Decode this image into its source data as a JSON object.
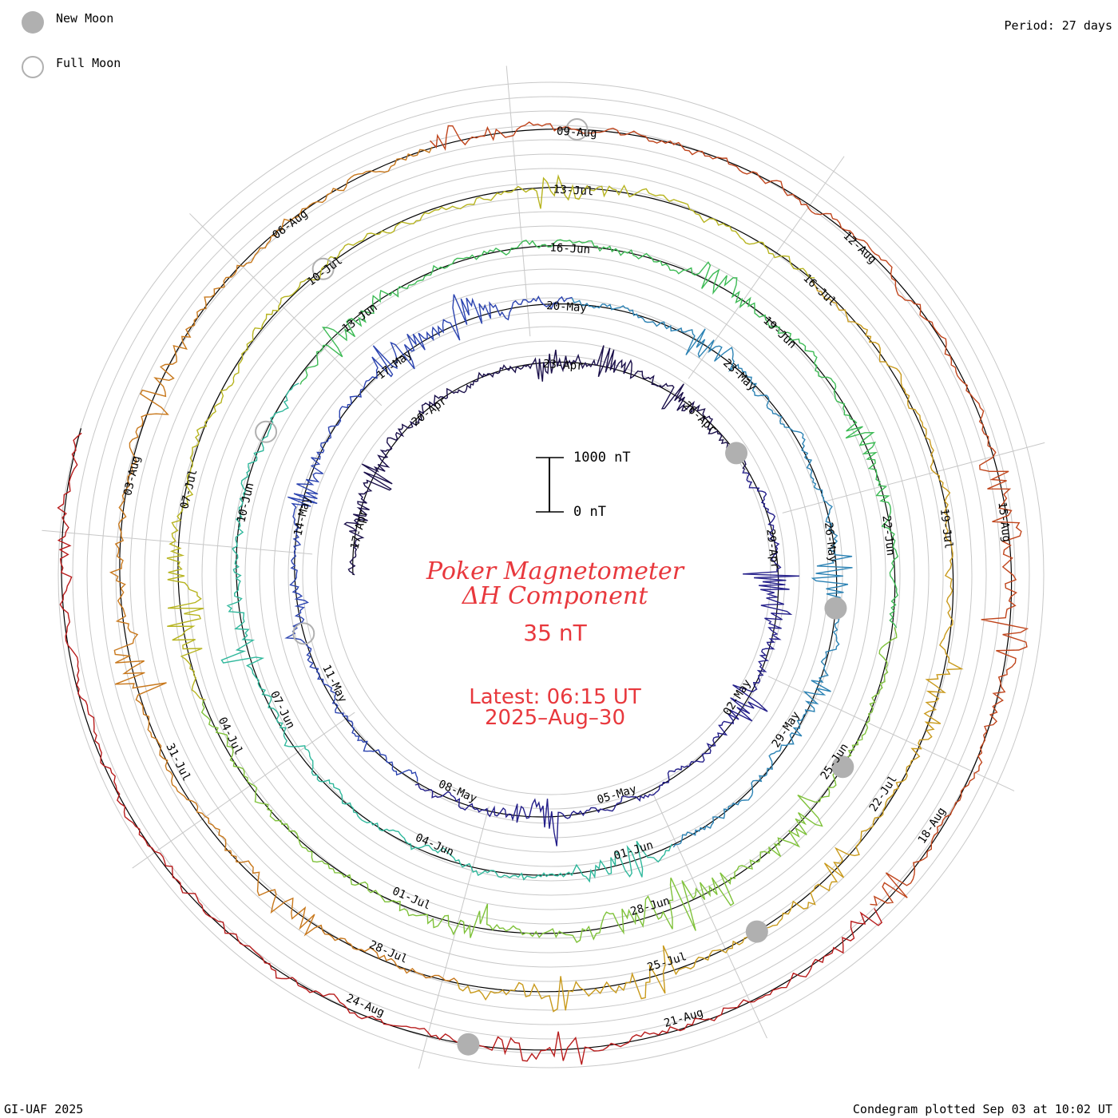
{
  "legend": {
    "new_moon_label": "New Moon",
    "full_moon_label": "Full Moon",
    "new_moon_color": "#b0b0b0",
    "full_moon_color": "#b0b0b0"
  },
  "header": {
    "period_label": "Period: 27 days"
  },
  "footer": {
    "credit": "GI-UAF 2025",
    "plotted": "Condegram plotted Sep 03 at 10:02 UT"
  },
  "center": {
    "title_line1": "Poker Magnetometer",
    "title_line2": "ΔH Component",
    "spacing": "35 nT",
    "latest_line1": "Latest: 06:15 UT",
    "latest_line2": "2025–Aug–30",
    "accent_color": "#e8383d"
  },
  "scale_bar": {
    "top_label": "1000 nT",
    "bottom_label": "0 nT"
  },
  "chart_data": {
    "type": "line",
    "subtype": "condegram-spiral",
    "title": "Poker Magnetometer ΔH Component",
    "period_days": 27,
    "ring_spacing_nT": 35,
    "scale_nT": [
      0,
      1000
    ],
    "start_date": "2025-04-16",
    "end_date": "2025-08-30",
    "latest": "06:15 UT 2025-Aug-30",
    "date_labels": [
      "17-Apr",
      "20-Apr",
      "23-Apr",
      "26-Apr",
      "29-Apr",
      "02-May",
      "05-May",
      "08-May",
      "11-May",
      "14-May",
      "17-May",
      "20-May",
      "23-May",
      "26-May",
      "29-May",
      "01-Jun",
      "04-Jun",
      "07-Jun",
      "10-Jun",
      "13-Jun",
      "16-Jun",
      "19-Jun",
      "22-Jun",
      "25-Jun",
      "28-Jun",
      "01-Jul",
      "04-Jul",
      "07-Jul",
      "10-Jul",
      "13-Jul",
      "16-Jul",
      "19-Jul",
      "22-Jul",
      "25-Jul",
      "28-Jul",
      "31-Jul",
      "03-Aug",
      "06-Aug",
      "09-Aug",
      "12-Aug",
      "15-Aug",
      "18-Aug",
      "21-Aug",
      "24-Aug"
    ],
    "new_moons": [
      "2025-04-27",
      "2025-05-27",
      "2025-06-25",
      "2025-07-24",
      "2025-08-23"
    ],
    "full_moons": [
      "2025-05-12",
      "2025-06-11",
      "2025-07-10",
      "2025-08-09"
    ],
    "series_colors": [
      "#1a0f4a",
      "#241f8a",
      "#2c44b0",
      "#2b82b4",
      "#2fb89c",
      "#3dbb55",
      "#7fc23a",
      "#b7b41f",
      "#c99a1c",
      "#c8781c",
      "#c0451c",
      "#b81c1c"
    ]
  }
}
